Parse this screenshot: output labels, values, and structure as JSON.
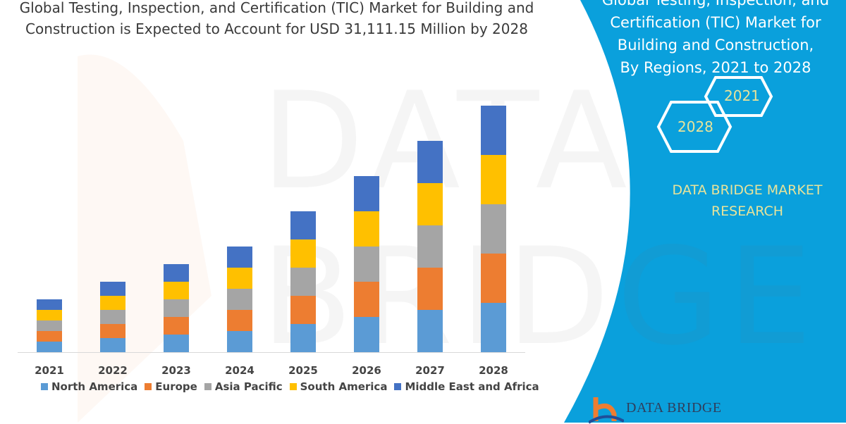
{
  "title": {
    "line1": "Global Testing, Inspection, and Certification (TIC) Market for Building and",
    "line2": "Construction is Expected to Account for USD 31,111.15 Million by 2028"
  },
  "panel": {
    "title_lines": [
      "Global Testing, Inspection, and",
      "Certification (TIC) Market for",
      "Building and Construction,",
      "By Regions, 2021 to 2028"
    ],
    "hex_start": "2021",
    "hex_end": "2028",
    "brand_line1": "DATA BRIDGE MARKET",
    "brand_line2": "RESEARCH",
    "logo_text": "DATA BRIDGE",
    "watermark": "DATA BRIDGE",
    "color": "#0aa0dc"
  },
  "chart_data": {
    "type": "bar",
    "stacked": true,
    "categories": [
      "2021",
      "2022",
      "2023",
      "2024",
      "2025",
      "2026",
      "2027",
      "2028"
    ],
    "series": [
      {
        "name": "North America",
        "color": "#5b9bd5",
        "values": [
          15,
          20,
          25,
          30,
          40,
          50,
          60,
          70
        ]
      },
      {
        "name": "Europe",
        "color": "#ed7d31",
        "values": [
          15,
          20,
          25,
          30,
          40,
          50,
          60,
          70
        ]
      },
      {
        "name": "Asia Pacific",
        "color": "#a5a5a5",
        "values": [
          15,
          20,
          25,
          30,
          40,
          50,
          60,
          70
        ]
      },
      {
        "name": "South America",
        "color": "#ffc000",
        "values": [
          15,
          20,
          25,
          30,
          40,
          50,
          60,
          70
        ]
      },
      {
        "name": "Middle East and Africa",
        "color": "#4472c4",
        "values": [
          15,
          20,
          25,
          30,
          40,
          50,
          60,
          70
        ]
      }
    ],
    "xlabel": "",
    "ylabel": "",
    "y_axis_shown": false,
    "grid": false,
    "legend": "bottom"
  }
}
